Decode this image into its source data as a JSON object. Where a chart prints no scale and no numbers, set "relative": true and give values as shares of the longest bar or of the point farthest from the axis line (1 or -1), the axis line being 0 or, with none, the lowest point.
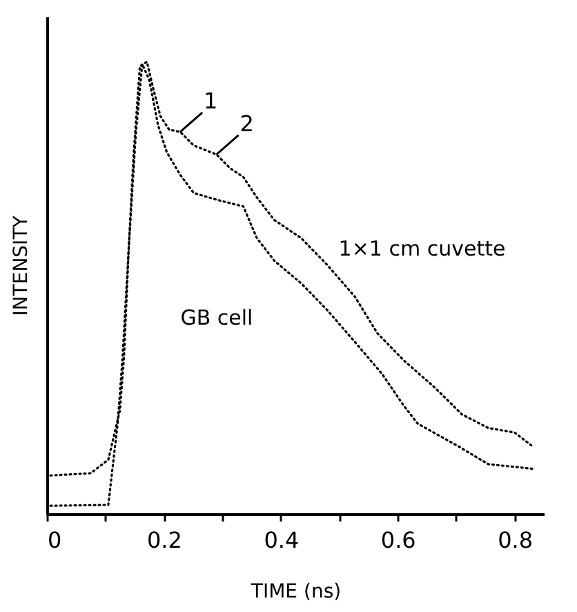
{
  "chart_data": {
    "type": "line",
    "xlabel": "TIME (ns)",
    "ylabel": "INTENSITY",
    "relative": true,
    "xlim": [
      0,
      0.85
    ],
    "xticks": [
      0,
      {
        "value": 0.1,
        "label": null
      },
      0.2,
      {
        "value": 0.3,
        "label": null
      },
      0.4,
      {
        "value": 0.5,
        "label": null
      },
      0.6,
      {
        "value": 0.7,
        "label": null
      },
      0.8
    ],
    "line_style": "dotted",
    "marker": "none",
    "grid": false,
    "legend": false,
    "annotations": [
      {
        "text": "1",
        "x": 0.228,
        "y": 0.845
      },
      {
        "text": "2",
        "x": 0.29,
        "y": 0.795
      }
    ],
    "series": [
      {
        "name": "1×1 cm cuvette",
        "color": "#000000",
        "x": [
          0.006,
          0.075,
          0.105,
          0.125,
          0.132,
          0.14,
          0.148,
          0.159,
          0.171,
          0.182,
          0.194,
          0.209,
          0.228,
          0.251,
          0.29,
          0.313,
          0.336,
          0.359,
          0.389,
          0.435,
          0.48,
          0.527,
          0.565,
          0.61,
          0.663,
          0.71,
          0.755,
          0.8,
          0.83
        ],
        "values": [
          0.085,
          0.09,
          0.12,
          0.23,
          0.35,
          0.59,
          0.79,
          0.99,
          1.0,
          0.94,
          0.88,
          0.85,
          0.845,
          0.815,
          0.795,
          0.765,
          0.745,
          0.7,
          0.65,
          0.61,
          0.55,
          0.48,
          0.4,
          0.34,
          0.28,
          0.22,
          0.19,
          0.18,
          0.15
        ]
      },
      {
        "name": "GB cell",
        "color": "#000000",
        "x": [
          0.006,
          0.105,
          0.121,
          0.129,
          0.14,
          0.152,
          0.163,
          0.175,
          0.19,
          0.205,
          0.228,
          0.251,
          0.29,
          0.336,
          0.359,
          0.389,
          0.435,
          0.48,
          0.527,
          0.573,
          0.61,
          0.634,
          0.703,
          0.755,
          0.83
        ],
        "values": [
          0.018,
          0.02,
          0.2,
          0.34,
          0.59,
          0.84,
          0.995,
          0.96,
          0.86,
          0.8,
          0.75,
          0.71,
          0.695,
          0.68,
          0.61,
          0.56,
          0.51,
          0.45,
          0.38,
          0.31,
          0.24,
          0.2,
          0.15,
          0.11,
          0.1
        ]
      }
    ]
  }
}
